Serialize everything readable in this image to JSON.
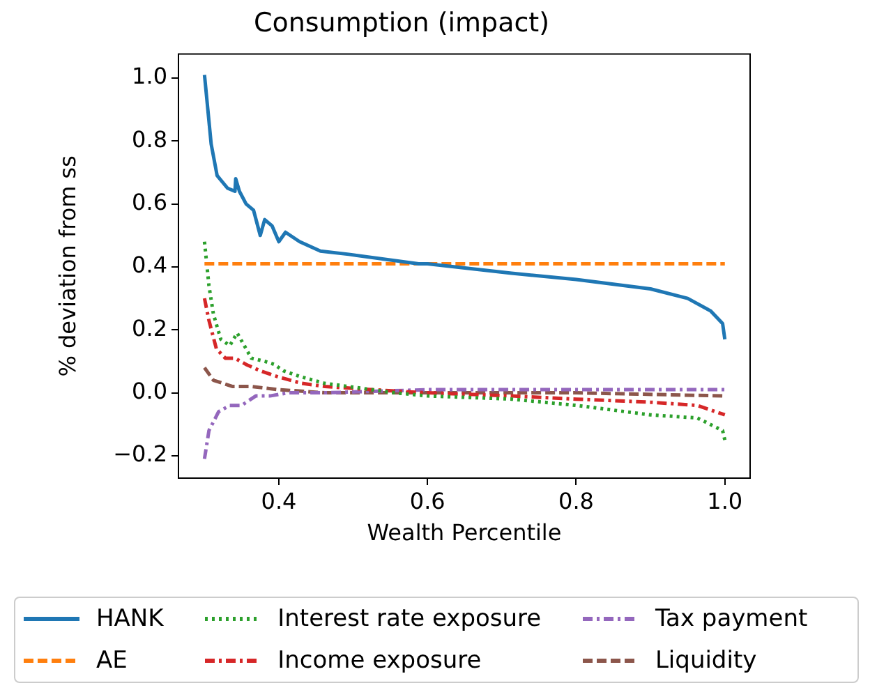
{
  "chart_data": {
    "type": "line",
    "title": "Consumption (impact)",
    "xlabel": "Wealth Percentile",
    "ylabel": "% deviation from ss",
    "xlim": [
      0.265,
      1.034
    ],
    "ylim": [
      -0.271,
      1.076
    ],
    "xticks": [
      {
        "value": 0.4,
        "label": "0.4"
      },
      {
        "value": 0.6,
        "label": "0.6"
      },
      {
        "value": 0.8,
        "label": "0.8"
      },
      {
        "value": 1.0,
        "label": "1.0"
      }
    ],
    "yticks": [
      {
        "value": -0.2,
        "label": "−0.2"
      },
      {
        "value": 0,
        "label": "0.0"
      },
      {
        "value": 0.2,
        "label": "0.2"
      },
      {
        "value": 0.4,
        "label": "0.4"
      },
      {
        "value": 0.6,
        "label": "0.6"
      },
      {
        "value": 0.8,
        "label": "0.8"
      },
      {
        "value": 1.0,
        "label": "1.0"
      }
    ],
    "grid": false,
    "legend": "bottom",
    "series": [
      {
        "name": "HANK",
        "color": "#1f77b4",
        "line_style": "solid",
        "x": [
          0.3,
          0.309,
          0.317,
          0.331,
          0.341,
          0.342,
          0.347,
          0.356,
          0.366,
          0.375,
          0.381,
          0.391,
          0.4,
          0.409,
          0.428,
          0.456,
          0.494,
          0.588,
          0.6,
          0.713,
          0.8,
          0.9,
          0.95,
          0.981,
          0.997,
          1.0
        ],
        "values": [
          1.01,
          0.79,
          0.69,
          0.65,
          0.64,
          0.68,
          0.64,
          0.6,
          0.58,
          0.5,
          0.55,
          0.53,
          0.48,
          0.51,
          0.48,
          0.45,
          0.44,
          0.41,
          0.41,
          0.38,
          0.36,
          0.33,
          0.3,
          0.26,
          0.22,
          0.17
        ]
      },
      {
        "name": "AE",
        "color": "#ff7f0e",
        "line_style": "dashed",
        "x": [
          0.3,
          1.0
        ],
        "values": [
          0.41,
          0.41
        ]
      },
      {
        "name": "Interest rate exposure",
        "color": "#2ca02c",
        "line_style": "dotted",
        "x": [
          0.3,
          0.306,
          0.312,
          0.322,
          0.334,
          0.344,
          0.363,
          0.381,
          0.394,
          0.406,
          0.431,
          0.462,
          0.494,
          0.556,
          0.6,
          0.713,
          0.8,
          0.9,
          0.963,
          0.997,
          1.0
        ],
        "values": [
          0.48,
          0.34,
          0.25,
          0.17,
          0.15,
          0.19,
          0.11,
          0.1,
          0.09,
          0.07,
          0.05,
          0.03,
          0.02,
          0.0,
          -0.01,
          -0.02,
          -0.04,
          -0.07,
          -0.08,
          -0.12,
          -0.15
        ]
      },
      {
        "name": "Income exposure",
        "color": "#d62728",
        "line_style": "dashdot",
        "x": [
          0.3,
          0.306,
          0.316,
          0.328,
          0.341,
          0.356,
          0.375,
          0.4,
          0.431,
          0.462,
          0.525,
          0.6,
          0.713,
          0.8,
          0.9,
          0.963,
          1.0
        ],
        "values": [
          0.3,
          0.23,
          0.14,
          0.11,
          0.11,
          0.09,
          0.07,
          0.05,
          0.03,
          0.02,
          0.01,
          0.0,
          -0.01,
          -0.02,
          -0.03,
          -0.04,
          -0.07
        ]
      },
      {
        "name": "Tax payment",
        "color": "#9467bd",
        "line_style": "dashdot",
        "x": [
          0.3,
          0.306,
          0.319,
          0.334,
          0.35,
          0.369,
          0.388,
          0.412,
          0.462,
          0.6,
          0.8,
          0.9,
          1.0
        ],
        "values": [
          -0.21,
          -0.12,
          -0.06,
          -0.04,
          -0.04,
          -0.01,
          -0.01,
          0.0,
          0.0,
          0.01,
          0.01,
          0.01,
          0.01
        ]
      },
      {
        "name": "Liquidity",
        "color": "#8c564b",
        "line_style": "dashed",
        "x": [
          0.3,
          0.312,
          0.338,
          0.363,
          0.4,
          0.462,
          0.6,
          0.8,
          1.0
        ],
        "values": [
          0.08,
          0.04,
          0.02,
          0.02,
          0.01,
          0.0,
          0.0,
          0.0,
          -0.01
        ]
      }
    ]
  }
}
